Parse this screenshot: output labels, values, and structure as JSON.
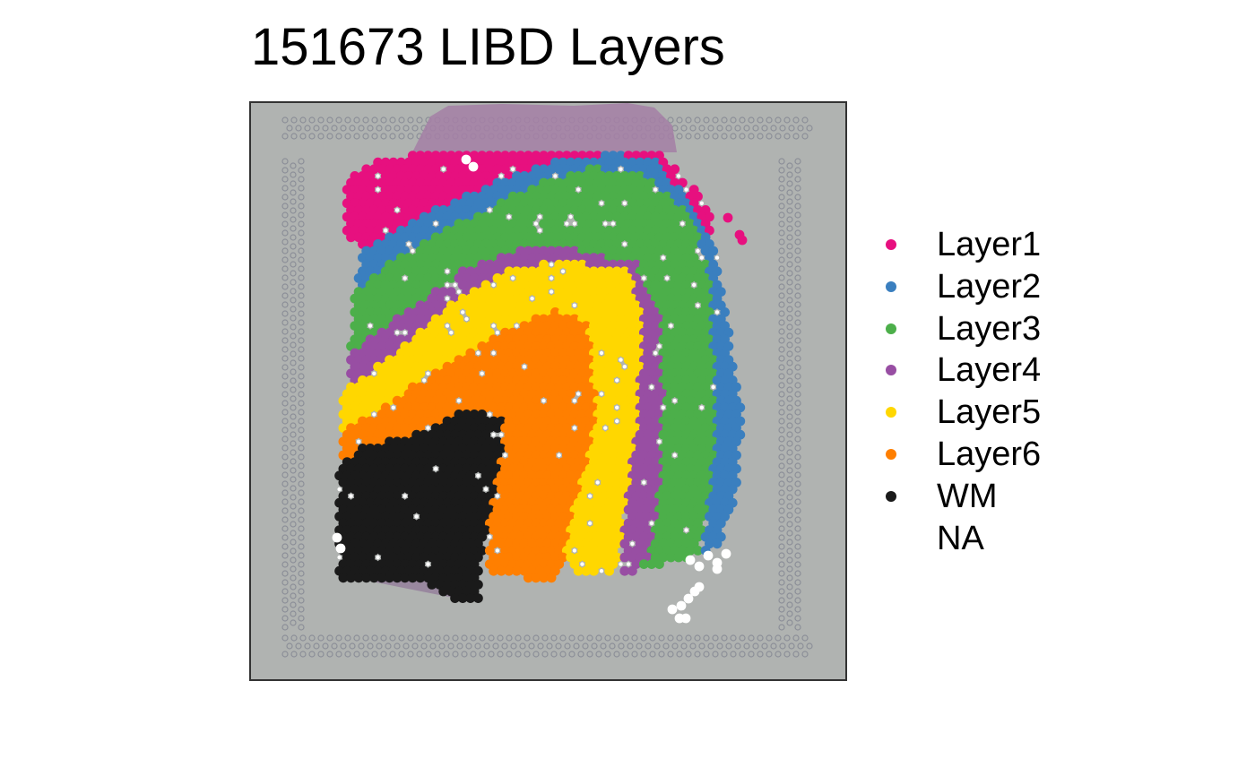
{
  "chart_data": {
    "type": "scatter",
    "title": "151673 LIBD Layers",
    "xlabel": "",
    "ylabel": "",
    "background": "H&E tissue image",
    "legend_position": "right",
    "grid": false,
    "series": [
      {
        "name": "Layer1",
        "color": "#e7107f",
        "region": "outer cortical band along the top edge"
      },
      {
        "name": "Layer2",
        "color": "#3a7fbf",
        "region": "thin band beneath Layer1, continuing down the right side"
      },
      {
        "name": "Layer3",
        "color": "#4caf4a",
        "region": "broad band forming the outer arc"
      },
      {
        "name": "Layer4",
        "color": "#984ea3",
        "region": "thin arc between Layer3 and Layer5"
      },
      {
        "name": "Layer5",
        "color": "#ffd700",
        "region": "arc between Layer4 and Layer6"
      },
      {
        "name": "Layer6",
        "color": "#ff7f00",
        "region": "inner arc adjacent to white matter"
      },
      {
        "name": "WM",
        "color": "#1a1a1a",
        "region": "lower-left core"
      },
      {
        "name": "NA",
        "color": "#ffffff",
        "region": "scattered unassigned spots"
      }
    ]
  }
}
